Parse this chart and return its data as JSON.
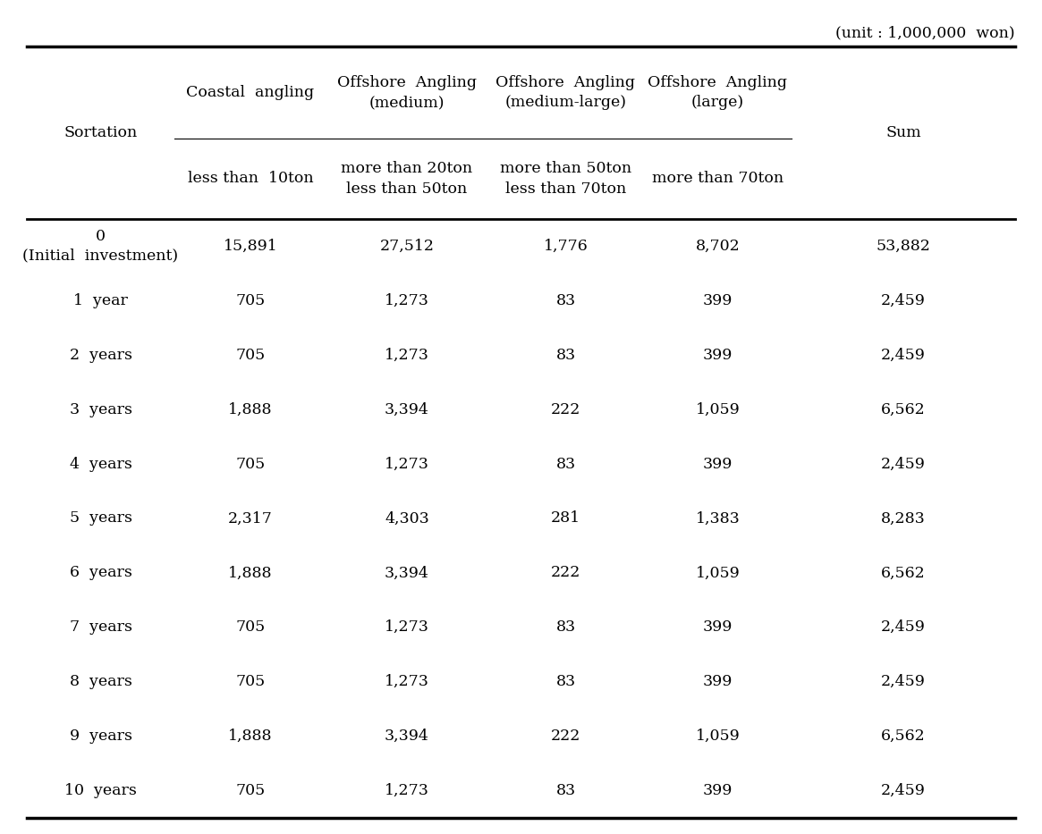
{
  "unit_text": "(unit : 1,000,000  won)",
  "sortation_label": "Sortation",
  "col_header_top": [
    "Coastal  angling",
    "Offshore  Angling\n(medium)",
    "Offshore  Angling\n(medium-large)",
    "Offshore  Angling\n(large)"
  ],
  "col_header_bot": [
    "less than  10ton",
    "more than 20ton\nless than 50ton",
    "more than 50ton\nless than 70ton",
    "more than 70ton"
  ],
  "sum_label": "Sum",
  "rows": [
    {
      "label": "0\n(Initial  investment)",
      "values": [
        "15,891",
        "27,512",
        "1,776",
        "8,702",
        "53,882"
      ]
    },
    {
      "label": "1  year",
      "values": [
        "705",
        "1,273",
        "83",
        "399",
        "2,459"
      ]
    },
    {
      "label": "2  years",
      "values": [
        "705",
        "1,273",
        "83",
        "399",
        "2,459"
      ]
    },
    {
      "label": "3  years",
      "values": [
        "1,888",
        "3,394",
        "222",
        "1,059",
        "6,562"
      ]
    },
    {
      "label": "4  years",
      "values": [
        "705",
        "1,273",
        "83",
        "399",
        "2,459"
      ]
    },
    {
      "label": "5  years",
      "values": [
        "2,317",
        "4,303",
        "281",
        "1,383",
        "8,283"
      ]
    },
    {
      "label": "6  years",
      "values": [
        "1,888",
        "3,394",
        "222",
        "1,059",
        "6,562"
      ]
    },
    {
      "label": "7  years",
      "values": [
        "705",
        "1,273",
        "83",
        "399",
        "2,459"
      ]
    },
    {
      "label": "8  years",
      "values": [
        "705",
        "1,273",
        "83",
        "399",
        "2,459"
      ]
    },
    {
      "label": "9  years",
      "values": [
        "1,888",
        "3,394",
        "222",
        "1,059",
        "6,562"
      ]
    },
    {
      "label": "10  years",
      "values": [
        "705",
        "1,273",
        "83",
        "399",
        "2,459"
      ]
    }
  ],
  "background_color": "#ffffff",
  "text_color": "#000000",
  "font_size": 12.5,
  "header_font_size": 12.5
}
